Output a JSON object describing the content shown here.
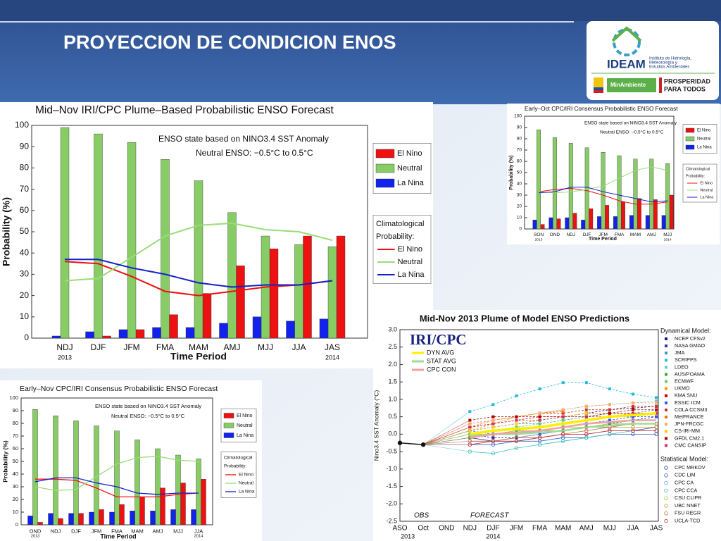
{
  "header": {
    "title": "PROYECCION DE CONDICION ENOS",
    "logo": {
      "name": "IDEAM",
      "subtitle": [
        "Instituto de Hidrología,",
        "Meteorología y",
        "Estudios Ambientales"
      ],
      "ministry": "MinAmbiente",
      "slogan": [
        "PROSPERIDAD",
        "PARA TODOS"
      ]
    }
  },
  "chart_data": [
    {
      "type": "bar",
      "title": "Mid–Nov IRI/CPC Plume–Based Probabilistic ENSO Forecast",
      "annotations": [
        "ENSO state based on NINO3.4 SST Anomaly",
        "Neutral ENSO: −0.5°C to 0.5°C"
      ],
      "categories": [
        "NDJ",
        "DJF",
        "JFM",
        "FMA",
        "MAM",
        "AMJ",
        "MJJ",
        "JJA",
        "JAS"
      ],
      "category_years": [
        "2013",
        null,
        null,
        null,
        null,
        null,
        null,
        null,
        "2014"
      ],
      "xlabel": "Time Period",
      "ylabel": "Probability (%)",
      "ylim": [
        0,
        100
      ],
      "yticks": [
        0,
        10,
        20,
        30,
        40,
        50,
        60,
        70,
        80,
        90,
        100
      ],
      "series": [
        {
          "name": "El Nino",
          "color": "#ee1111",
          "values": [
            0,
            1,
            4,
            11,
            21,
            34,
            42,
            48,
            48
          ]
        },
        {
          "name": "Neutral",
          "color": "#88cc66",
          "values": [
            99,
            96,
            92,
            84,
            74,
            59,
            48,
            44,
            43
          ]
        },
        {
          "name": "La Nina",
          "color": "#1122ee",
          "values": [
            1,
            3,
            4,
            5,
            5,
            7,
            10,
            8,
            9
          ]
        }
      ],
      "climatology": {
        "title": [
          "Climatological",
          "Probability:"
        ],
        "series": [
          {
            "name": "El Nino",
            "color": "#ee1111",
            "values": [
              36,
              35,
              29,
              22,
              20,
              22,
              24,
              25,
              27
            ]
          },
          {
            "name": "Neutral",
            "color": "#99dd77",
            "values": [
              27,
              28,
              38,
              48,
              53,
              54,
              51,
              50,
              46
            ]
          },
          {
            "name": "La Nina",
            "color": "#1122cc",
            "values": [
              37,
              37,
              33,
              30,
              26,
              24,
              25,
              25,
              27
            ]
          }
        ]
      }
    },
    {
      "type": "bar",
      "title": "Early–Oct CPC/IRI Consensus Probabilistic ENSO Forecast",
      "annotations": [
        "ENSO state based on NINO3.4 SST Anomaly",
        "Neutral ENSO: −0.5°C to 0.5°C"
      ],
      "categories": [
        "SON",
        "OND",
        "NDJ",
        "DJF",
        "JFM",
        "FMA",
        "MAM",
        "AMJ",
        "MJJ"
      ],
      "category_years": [
        "2013",
        null,
        null,
        null,
        null,
        null,
        null,
        null,
        "2014"
      ],
      "xlabel": "Time Period",
      "ylabel": "Probability (%)",
      "ylim": [
        0,
        100
      ],
      "yticks": [
        0,
        10,
        20,
        30,
        40,
        50,
        60,
        70,
        80,
        90,
        100
      ],
      "series": [
        {
          "name": "El Nino",
          "color": "#ee1111",
          "values": [
            4,
            9,
            14,
            18,
            21,
            24,
            27,
            26,
            30
          ]
        },
        {
          "name": "Neutral",
          "color": "#88cc66",
          "values": [
            88,
            81,
            76,
            72,
            68,
            65,
            62,
            62,
            58
          ]
        },
        {
          "name": "La Nina",
          "color": "#1122ee",
          "values": [
            8,
            10,
            10,
            8,
            11,
            11,
            12,
            12,
            12
          ]
        }
      ],
      "climatology": {
        "title": [
          "Climatological",
          "Probability:"
        ],
        "series": [
          {
            "name": "El Nino",
            "color": "#ee1111",
            "values": [
              33,
              35,
              36,
              34,
              30,
              25,
              22,
              22,
              24
            ]
          },
          {
            "name": "Neutral",
            "color": "#99dd77",
            "values": [
              33,
              32,
              33,
              35,
              38,
              45,
              52,
              55,
              52
            ]
          },
          {
            "name": "La Nina",
            "color": "#1122cc",
            "values": [
              32,
              33,
              37,
              37,
              33,
              30,
              27,
              24,
              25
            ]
          }
        ]
      }
    },
    {
      "type": "bar",
      "title": "Early–Nov CPC/IRI Consensus Probabilistic ENSO Forecast",
      "annotations": [
        "ENSO state based on NINO3.4 SST Anomaly",
        "Neutral ENSO: −0.5°C to 0.5°C"
      ],
      "categories": [
        "OND",
        "NDJ",
        "DJF",
        "JFM",
        "FMA",
        "MAM",
        "AMJ",
        "MJJ",
        "JJA"
      ],
      "category_years": [
        "2013",
        null,
        null,
        null,
        null,
        null,
        null,
        null,
        "2014"
      ],
      "xlabel": "Time Period",
      "ylabel": "Probability (%)",
      "ylim": [
        0,
        100
      ],
      "yticks": [
        0,
        10,
        20,
        30,
        40,
        50,
        60,
        70,
        80,
        90,
        100
      ],
      "series": [
        {
          "name": "El Nino",
          "color": "#ee1111",
          "values": [
            2,
            5,
            9,
            12,
            16,
            22,
            29,
            33,
            36
          ]
        },
        {
          "name": "Neutral",
          "color": "#88cc66",
          "values": [
            91,
            86,
            82,
            78,
            74,
            67,
            60,
            55,
            52
          ]
        },
        {
          "name": "La Nina",
          "color": "#1122ee",
          "values": [
            7,
            9,
            9,
            10,
            10,
            11,
            11,
            12,
            12
          ]
        }
      ],
      "climatology": {
        "title": [
          "Climatological",
          "Probability:"
        ],
        "series": [
          {
            "name": "El Nino",
            "color": "#ee1111",
            "values": [
              36,
              36,
              35,
              29,
              22,
              22,
              22,
              24,
              25
            ]
          },
          {
            "name": "Neutral",
            "color": "#99dd77",
            "values": [
              30,
              27,
              28,
              38,
              48,
              53,
              54,
              51,
              50
            ]
          },
          {
            "name": "La Nina",
            "color": "#1122cc",
            "values": [
              34,
              37,
              37,
              33,
              30,
              25,
              24,
              25,
              25
            ]
          }
        ]
      }
    },
    {
      "type": "line",
      "title": "Mid-Nov 2013 Plume of Model ENSO Predictions",
      "annotations": [
        "IRI/CPC",
        "FORECAST"
      ],
      "categories": [
        "ASO",
        "Oct",
        "OND",
        "NDJ",
        "DJF",
        "JFM",
        "FMA",
        "MAM",
        "AMJ",
        "MJJ",
        "JJA",
        "JAS"
      ],
      "category_years": [
        null,
        "2013",
        null,
        null,
        "2014",
        null,
        null,
        null,
        null,
        null,
        null,
        null
      ],
      "ylabel": "Nino3.4 SST Anomaly (°C)",
      "ylim": [
        -2.5,
        3.0
      ],
      "yticks": [
        -2.5,
        {
          "value": -2.0,
          "label": "-2.0"
        },
        -1.5,
        {
          "value": -1.0,
          "label": "-1.0"
        },
        -0.5,
        {
          "value": 0.0,
          "label": "0.0"
        },
        0.5,
        {
          "value": 1.0,
          "label": "1.0"
        },
        1.5,
        {
          "value": 2.0,
          "label": "2.0"
        },
        2.5,
        {
          "value": 3.0,
          "label": "3.0"
        }
      ],
      "obs": {
        "name": "OBS",
        "color": "#111111",
        "values": [
          -0.25,
          -0.3,
          null,
          null,
          null,
          null,
          null,
          null,
          null,
          null,
          null,
          null
        ]
      },
      "averages": [
        {
          "name": "DYN AVG",
          "color": "#ffee00",
          "values": [
            null,
            null,
            null,
            0.0,
            0.1,
            0.15,
            0.2,
            0.3,
            0.4,
            0.5,
            0.55,
            0.6
          ]
        },
        {
          "name": "STAT AVG",
          "color": "#99dd99",
          "values": [
            null,
            null,
            null,
            -0.05,
            0.0,
            0.0,
            0.05,
            0.1,
            0.2,
            0.25,
            0.3,
            0.3
          ]
        },
        {
          "name": "CPC CON",
          "color": "#f0a0a0",
          "values": [
            null,
            null,
            null,
            -0.1,
            0.0,
            0.05,
            0.1,
            0.2,
            0.3,
            0.35,
            0.4,
            0.4
          ]
        }
      ],
      "dynamical_models": {
        "title": "Dynamical Model:",
        "series": [
          {
            "name": "NCEP CFSv2",
            "color": "#1a1a80",
            "values": [
              null,
              null,
              null,
              0.1,
              0.2,
              0.3,
              0.4,
              0.5,
              0.6,
              0.7,
              0.75,
              0.8
            ]
          },
          {
            "name": "NASA GMAO",
            "color": "#3333aa",
            "values": [
              null,
              null,
              null,
              0.0,
              -0.1,
              -0.1,
              0.0,
              0.1,
              0.2,
              0.3,
              0.4,
              0.5
            ]
          },
          {
            "name": "JMA",
            "color": "#3399cc",
            "values": [
              null,
              null,
              null,
              0.1,
              0.2,
              0.3,
              0.3,
              0.4,
              0.5,
              0.6,
              0.6,
              0.7
            ]
          },
          {
            "name": "SCRIPPS",
            "color": "#22bbdd",
            "values": [
              null,
              null,
              null,
              0.65,
              0.85,
              1.1,
              1.3,
              1.48,
              1.48,
              1.3,
              1.15,
              1.05
            ]
          },
          {
            "name": "LDEO",
            "color": "#66cccc",
            "values": [
              null,
              null,
              null,
              0.2,
              0.3,
              0.5,
              0.6,
              0.7,
              0.8,
              0.85,
              0.9,
              0.95
            ]
          },
          {
            "name": "AUS/POAMA",
            "color": "#33aa33",
            "values": [
              null,
              null,
              null,
              -0.1,
              0.0,
              0.1,
              0.2,
              0.3,
              0.4,
              0.5,
              0.5,
              0.5
            ]
          },
          {
            "name": "ECMWF",
            "color": "#66cc66",
            "values": [
              null,
              null,
              null,
              0.0,
              0.1,
              0.2,
              0.3,
              0.4,
              0.5,
              null,
              null,
              null
            ]
          },
          {
            "name": "UKMO",
            "color": "#ff9900",
            "values": [
              null,
              null,
              null,
              0.1,
              0.3,
              0.5,
              0.6,
              0.7,
              null,
              null,
              null,
              null
            ]
          },
          {
            "name": "KMA SNU",
            "color": "#cc0000",
            "values": [
              null,
              null,
              null,
              0.2,
              0.3,
              0.4,
              0.5,
              0.5,
              0.6,
              0.6,
              0.7,
              0.7
            ]
          },
          {
            "name": "ESSIC ICM",
            "color": "#3355ff",
            "values": [
              null,
              null,
              null,
              0.1,
              0.0,
              0.0,
              0.1,
              0.2,
              0.3,
              0.4,
              0.5,
              0.5
            ]
          },
          {
            "name": "COLA CCSM3",
            "color": "#cc3333",
            "values": [
              null,
              null,
              null,
              0.3,
              0.4,
              0.5,
              0.6,
              0.6,
              0.7,
              0.7,
              0.8,
              0.8
            ]
          },
          {
            "name": "MetFRANCE",
            "color": "#ff6600",
            "values": [
              null,
              null,
              null,
              0.2,
              0.4,
              0.5,
              0.6,
              0.65,
              null,
              null,
              null,
              null
            ]
          },
          {
            "name": "JPN-FRCGC",
            "color": "#ffaa66",
            "values": [
              null,
              null,
              null,
              0.3,
              0.4,
              0.5,
              0.6,
              0.7,
              0.8,
              0.85,
              0.9,
              0.9
            ]
          },
          {
            "name": "CS-IRI-MM",
            "color": "#ffcc00",
            "values": [
              null,
              null,
              null,
              0.1,
              0.2,
              0.3,
              0.4,
              0.5,
              0.6,
              0.6,
              0.6,
              0.6
            ]
          },
          {
            "name": "GFDL CM2.1",
            "color": "#aa0000",
            "values": [
              null,
              null,
              null,
              0.4,
              0.5,
              0.5,
              0.5,
              0.5,
              0.5,
              0.6,
              0.6,
              0.6
            ]
          },
          {
            "name": "CMC CANSIP",
            "color": "#cc3366",
            "values": [
              null,
              null,
              null,
              0.2,
              0.3,
              0.4,
              0.4,
              0.5,
              0.5,
              0.5,
              0.6,
              0.6
            ]
          }
        ]
      },
      "statistical_models": {
        "title": "Statistical Model:",
        "series": [
          {
            "name": "CPC MRKOV",
            "color": "#333399",
            "values": [
              null,
              null,
              null,
              -0.1,
              -0.2,
              -0.2,
              -0.1,
              0.0,
              0.0,
              0.1,
              0.1,
              0.2
            ]
          },
          {
            "name": "CDC LIM",
            "color": "#3366cc",
            "values": [
              null,
              null,
              null,
              -0.3,
              -0.3,
              -0.2,
              -0.2,
              -0.1,
              -0.1,
              0.0,
              0.0,
              0.0
            ]
          },
          {
            "name": "CPC CA",
            "color": "#6699ff",
            "values": [
              null,
              null,
              null,
              -0.2,
              -0.2,
              -0.1,
              0.0,
              0.1,
              0.2,
              0.2,
              0.3,
              0.3
            ]
          },
          {
            "name": "CPC CCA",
            "color": "#33bbbb",
            "values": [
              null,
              null,
              null,
              -0.5,
              -0.55,
              -0.4,
              -0.3,
              -0.2,
              -0.1,
              0.0,
              0.1,
              0.1
            ]
          },
          {
            "name": "CSU CLIPR",
            "color": "#99cc33",
            "values": [
              null,
              null,
              null,
              0.0,
              0.0,
              0.1,
              0.1,
              0.2,
              0.2,
              0.3,
              0.3,
              0.3
            ]
          },
          {
            "name": "UBC NNET",
            "color": "#cc9933",
            "values": [
              null,
              null,
              null,
              -0.1,
              0.0,
              0.0,
              0.1,
              0.1,
              0.2,
              0.2,
              0.2,
              0.2
            ]
          },
          {
            "name": "FSU REGR",
            "color": "#cc6633",
            "values": [
              null,
              null,
              null,
              -0.2,
              -0.2,
              -0.1,
              -0.1,
              0.0,
              0.1,
              0.2,
              0.3,
              0.3
            ]
          },
          {
            "name": "UCLA-TCD",
            "color": "#cc3333",
            "values": [
              null,
              null,
              null,
              -0.3,
              -0.2,
              -0.2,
              -0.1,
              0.0,
              0.0,
              0.1,
              0.1,
              0.1
            ]
          }
        ]
      }
    }
  ]
}
